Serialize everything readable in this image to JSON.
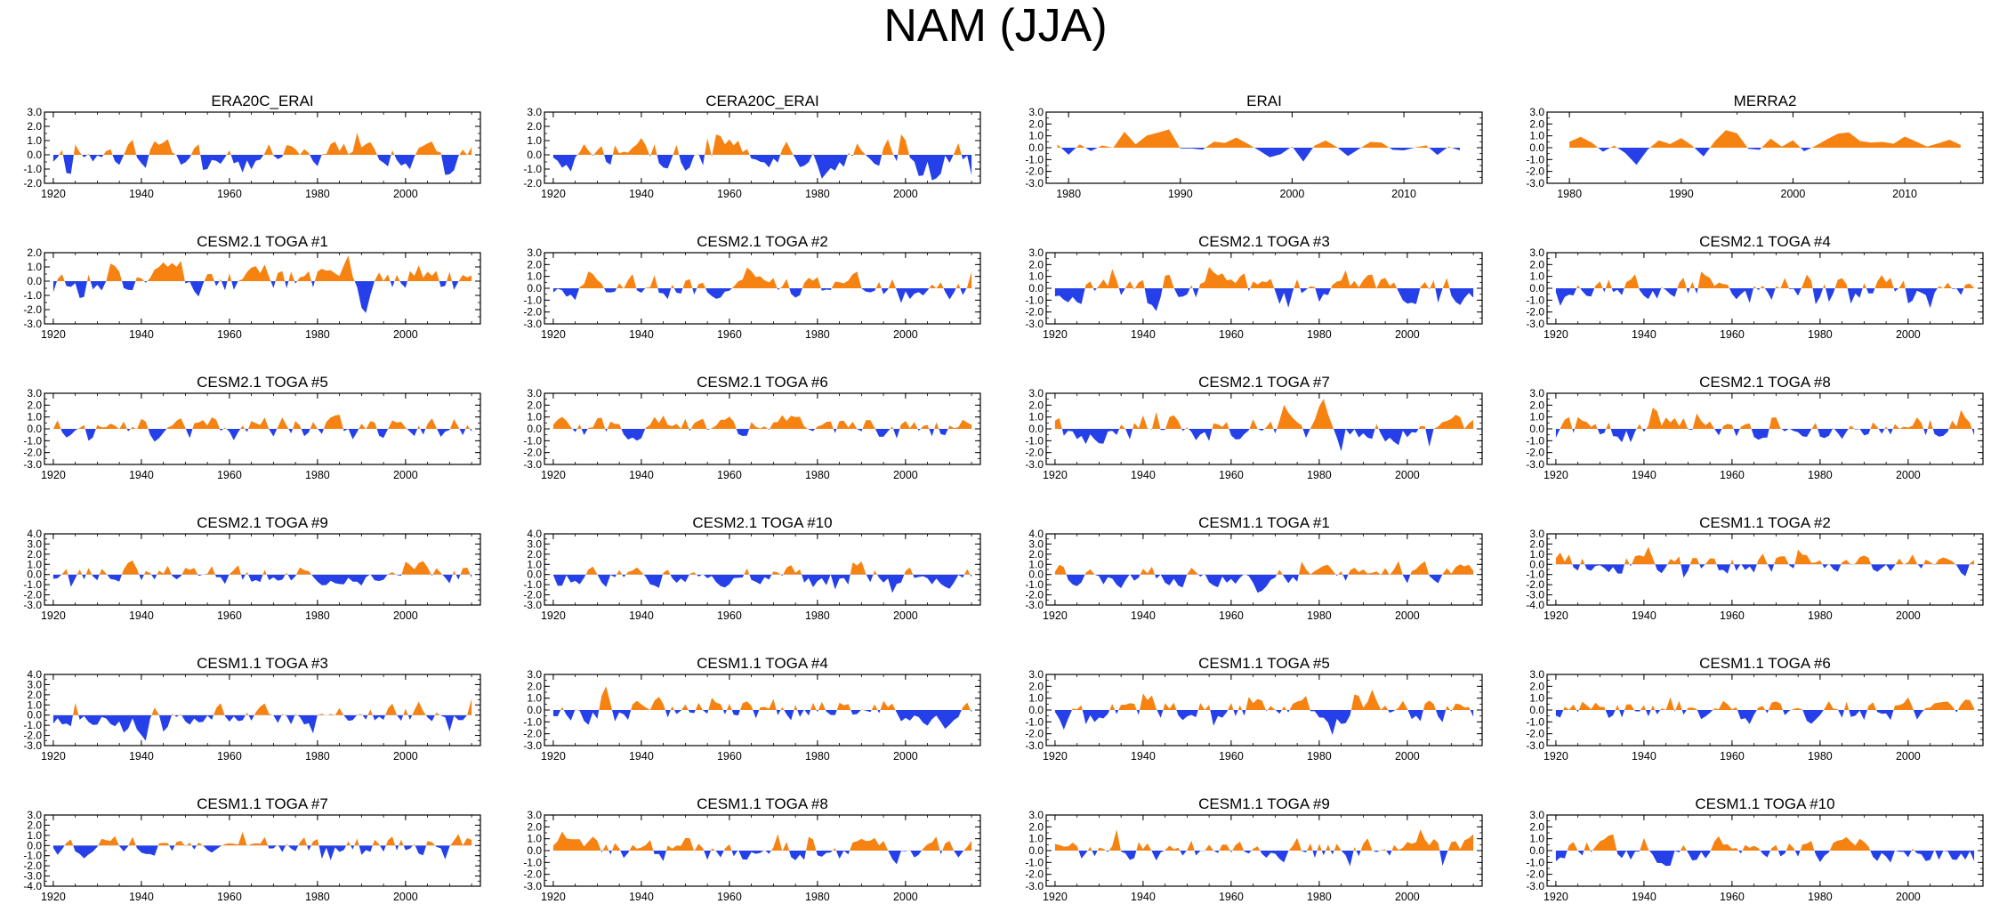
{
  "figure_title": "NAM (JJA)",
  "colors": {
    "positive": "#f68212",
    "negative": "#2540e8",
    "axis": "#000000"
  },
  "chart_data": [
    {
      "type": "area",
      "title": "ERA20C_ERAI",
      "x_start": 1920,
      "x_end": 2015,
      "xlim": [
        1918,
        2017
      ],
      "xticks": [
        1920,
        1940,
        1960,
        1980,
        2000
      ],
      "ylim": [
        -2.0,
        3.0
      ],
      "yticks": [
        3.0,
        2.0,
        1.0,
        0.0,
        -1.0,
        -2.0
      ],
      "seed": 11,
      "amp": 0.9
    },
    {
      "type": "area",
      "title": "CERA20C_ERAI",
      "x_start": 1920,
      "x_end": 2015,
      "xlim": [
        1918,
        2017
      ],
      "xticks": [
        1920,
        1940,
        1960,
        1980,
        2000
      ],
      "ylim": [
        -2.0,
        3.0
      ],
      "yticks": [
        3.0,
        2.0,
        1.0,
        0.0,
        -1.0,
        -2.0
      ],
      "seed": 12,
      "amp": 1.0
    },
    {
      "type": "area",
      "title": "ERAI",
      "x_start": 1979,
      "x_end": 2015,
      "xlim": [
        1978,
        2017
      ],
      "xticks": [
        1980,
        1990,
        2000,
        2010
      ],
      "ylim": [
        -3.0,
        3.0
      ],
      "yticks": [
        3.0,
        2.0,
        1.0,
        0.0,
        -1.0,
        -2.0,
        -3.0
      ],
      "seed": 13,
      "amp": 1.0
    },
    {
      "type": "area",
      "title": "MERRA2",
      "x_start": 1980,
      "x_end": 2015,
      "xlim": [
        1978,
        2017
      ],
      "xticks": [
        1980,
        1990,
        2000,
        2010
      ],
      "ylim": [
        -3.0,
        3.0
      ],
      "yticks": [
        3.0,
        2.0,
        1.0,
        0.0,
        -1.0,
        -2.0,
        -3.0
      ],
      "seed": 14,
      "amp": 1.0
    },
    {
      "type": "area",
      "title": "CESM2.1 TOGA #1",
      "x_start": 1920,
      "x_end": 2015,
      "xlim": [
        1918,
        2017
      ],
      "xticks": [
        1920,
        1940,
        1960,
        1980,
        2000
      ],
      "ylim": [
        -3.0,
        2.0
      ],
      "yticks": [
        2.0,
        1.0,
        0.0,
        -1.0,
        -2.0,
        -3.0
      ],
      "seed": 21,
      "amp": 1.1
    },
    {
      "type": "area",
      "title": "CESM2.1 TOGA #2",
      "x_start": 1920,
      "x_end": 2015,
      "xlim": [
        1918,
        2017
      ],
      "xticks": [
        1920,
        1940,
        1960,
        1980,
        2000
      ],
      "ylim": [
        -3.0,
        3.0
      ],
      "yticks": [
        3.0,
        2.0,
        1.0,
        0.0,
        -1.0,
        -2.0,
        -3.0
      ],
      "seed": 22,
      "amp": 1.0
    },
    {
      "type": "area",
      "title": "CESM2.1 TOGA #3",
      "x_start": 1920,
      "x_end": 2015,
      "xlim": [
        1918,
        2017
      ],
      "xticks": [
        1920,
        1940,
        1960,
        1980,
        2000
      ],
      "ylim": [
        -3.0,
        3.0
      ],
      "yticks": [
        3.0,
        2.0,
        1.0,
        0.0,
        -1.0,
        -2.0,
        -3.0
      ],
      "seed": 23,
      "amp": 1.0
    },
    {
      "type": "area",
      "title": "CESM2.1 TOGA #4",
      "x_start": 1920,
      "x_end": 2015,
      "xlim": [
        1918,
        2017
      ],
      "xticks": [
        1920,
        1940,
        1960,
        1980,
        2000
      ],
      "ylim": [
        -3.0,
        3.0
      ],
      "yticks": [
        3.0,
        2.0,
        1.0,
        0.0,
        -1.0,
        -2.0,
        -3.0
      ],
      "seed": 24,
      "amp": 1.0
    },
    {
      "type": "area",
      "title": "CESM2.1 TOGA #5",
      "x_start": 1920,
      "x_end": 2015,
      "xlim": [
        1918,
        2017
      ],
      "xticks": [
        1920,
        1940,
        1960,
        1980,
        2000
      ],
      "ylim": [
        -3.0,
        3.0
      ],
      "yticks": [
        3.0,
        2.0,
        1.0,
        0.0,
        -1.0,
        -2.0,
        -3.0
      ],
      "seed": 25,
      "amp": 1.0
    },
    {
      "type": "area",
      "title": "CESM2.1 TOGA #6",
      "x_start": 1920,
      "x_end": 2015,
      "xlim": [
        1918,
        2017
      ],
      "xticks": [
        1920,
        1940,
        1960,
        1980,
        2000
      ],
      "ylim": [
        -3.0,
        3.0
      ],
      "yticks": [
        3.0,
        2.0,
        1.0,
        0.0,
        -1.0,
        -2.0,
        -3.0
      ],
      "seed": 26,
      "amp": 1.0
    },
    {
      "type": "area",
      "title": "CESM2.1 TOGA #7",
      "x_start": 1920,
      "x_end": 2015,
      "xlim": [
        1918,
        2017
      ],
      "xticks": [
        1920,
        1940,
        1960,
        1980,
        2000
      ],
      "ylim": [
        -3.0,
        3.0
      ],
      "yticks": [
        3.0,
        2.0,
        1.0,
        0.0,
        -1.0,
        -2.0,
        -3.0
      ],
      "seed": 27,
      "amp": 1.0
    },
    {
      "type": "area",
      "title": "CESM2.1 TOGA #8",
      "x_start": 1920,
      "x_end": 2015,
      "xlim": [
        1918,
        2017
      ],
      "xticks": [
        1920,
        1940,
        1960,
        1980,
        2000
      ],
      "ylim": [
        -3.0,
        3.0
      ],
      "yticks": [
        3.0,
        2.0,
        1.0,
        0.0,
        -1.0,
        -2.0,
        -3.0
      ],
      "seed": 28,
      "amp": 1.0
    },
    {
      "type": "area",
      "title": "CESM2.1 TOGA #9",
      "x_start": 1920,
      "x_end": 2015,
      "xlim": [
        1918,
        2017
      ],
      "xticks": [
        1920,
        1940,
        1960,
        1980,
        2000
      ],
      "ylim": [
        -3.0,
        4.0
      ],
      "yticks": [
        4.0,
        3.0,
        2.0,
        1.0,
        0.0,
        -1.0,
        -2.0,
        -3.0
      ],
      "seed": 29,
      "amp": 1.0
    },
    {
      "type": "area",
      "title": "CESM2.1 TOGA #10",
      "x_start": 1920,
      "x_end": 2015,
      "xlim": [
        1918,
        2017
      ],
      "xticks": [
        1920,
        1940,
        1960,
        1980,
        2000
      ],
      "ylim": [
        -3.0,
        4.0
      ],
      "yticks": [
        4.0,
        3.0,
        2.0,
        1.0,
        0.0,
        -1.0,
        -2.0,
        -3.0
      ],
      "seed": 30,
      "amp": 1.0
    },
    {
      "type": "area",
      "title": "CESM1.1 TOGA #1",
      "x_start": 1920,
      "x_end": 2015,
      "xlim": [
        1918,
        2017
      ],
      "xticks": [
        1920,
        1940,
        1960,
        1980,
        2000
      ],
      "ylim": [
        -3.0,
        4.0
      ],
      "yticks": [
        4.0,
        3.0,
        2.0,
        1.0,
        0.0,
        -1.0,
        -2.0,
        -3.0
      ],
      "seed": 31,
      "amp": 1.0
    },
    {
      "type": "area",
      "title": "CESM1.1 TOGA #2",
      "x_start": 1920,
      "x_end": 2015,
      "xlim": [
        1918,
        2017
      ],
      "xticks": [
        1920,
        1940,
        1960,
        1980,
        2000
      ],
      "ylim": [
        -4.0,
        3.0
      ],
      "yticks": [
        3.0,
        2.0,
        1.0,
        0.0,
        -1.0,
        -2.0,
        -3.0,
        -4.0
      ],
      "seed": 32,
      "amp": 1.0
    },
    {
      "type": "area",
      "title": "CESM1.1 TOGA #3",
      "x_start": 1920,
      "x_end": 2015,
      "xlim": [
        1918,
        2017
      ],
      "xticks": [
        1920,
        1940,
        1960,
        1980,
        2000
      ],
      "ylim": [
        -3.0,
        4.0
      ],
      "yticks": [
        4.0,
        3.0,
        2.0,
        1.0,
        0.0,
        -1.0,
        -2.0,
        -3.0
      ],
      "seed": 33,
      "amp": 1.0
    },
    {
      "type": "area",
      "title": "CESM1.1 TOGA #4",
      "x_start": 1920,
      "x_end": 2015,
      "xlim": [
        1918,
        2017
      ],
      "xticks": [
        1920,
        1940,
        1960,
        1980,
        2000
      ],
      "ylim": [
        -3.0,
        3.0
      ],
      "yticks": [
        3.0,
        2.0,
        1.0,
        0.0,
        -1.0,
        -2.0,
        -3.0
      ],
      "seed": 34,
      "amp": 1.0
    },
    {
      "type": "area",
      "title": "CESM1.1 TOGA #5",
      "x_start": 1920,
      "x_end": 2015,
      "xlim": [
        1918,
        2017
      ],
      "xticks": [
        1920,
        1940,
        1960,
        1980,
        2000
      ],
      "ylim": [
        -3.0,
        3.0
      ],
      "yticks": [
        3.0,
        2.0,
        1.0,
        0.0,
        -1.0,
        -2.0,
        -3.0
      ],
      "seed": 35,
      "amp": 1.0
    },
    {
      "type": "area",
      "title": "CESM1.1 TOGA #6",
      "x_start": 1920,
      "x_end": 2015,
      "xlim": [
        1918,
        2017
      ],
      "xticks": [
        1920,
        1940,
        1960,
        1980,
        2000
      ],
      "ylim": [
        -3.0,
        3.0
      ],
      "yticks": [
        3.0,
        2.0,
        1.0,
        0.0,
        -1.0,
        -2.0,
        -3.0
      ],
      "seed": 36,
      "amp": 1.0
    },
    {
      "type": "area",
      "title": "CESM1.1 TOGA #7",
      "x_start": 1920,
      "x_end": 2015,
      "xlim": [
        1918,
        2017
      ],
      "xticks": [
        1920,
        1940,
        1960,
        1980,
        2000
      ],
      "ylim": [
        -4.0,
        3.0
      ],
      "yticks": [
        3.0,
        2.0,
        1.0,
        0.0,
        -1.0,
        -2.0,
        -3.0,
        -4.0
      ],
      "seed": 37,
      "amp": 1.0
    },
    {
      "type": "area",
      "title": "CESM1.1 TOGA #8",
      "x_start": 1920,
      "x_end": 2015,
      "xlim": [
        1918,
        2017
      ],
      "xticks": [
        1920,
        1940,
        1960,
        1980,
        2000
      ],
      "ylim": [
        -3.0,
        3.0
      ],
      "yticks": [
        3.0,
        2.0,
        1.0,
        0.0,
        -1.0,
        -2.0,
        -3.0
      ],
      "seed": 38,
      "amp": 1.0
    },
    {
      "type": "area",
      "title": "CESM1.1 TOGA #9",
      "x_start": 1920,
      "x_end": 2015,
      "xlim": [
        1918,
        2017
      ],
      "xticks": [
        1920,
        1940,
        1960,
        1980,
        2000
      ],
      "ylim": [
        -3.0,
        3.0
      ],
      "yticks": [
        3.0,
        2.0,
        1.0,
        0.0,
        -1.0,
        -2.0,
        -3.0
      ],
      "seed": 39,
      "amp": 1.0
    },
    {
      "type": "area",
      "title": "CESM1.1 TOGA #10",
      "x_start": 1920,
      "x_end": 2015,
      "xlim": [
        1918,
        2017
      ],
      "xticks": [
        1920,
        1940,
        1960,
        1980,
        2000
      ],
      "ylim": [
        -3.0,
        3.0
      ],
      "yticks": [
        3.0,
        2.0,
        1.0,
        0.0,
        -1.0,
        -2.0,
        -3.0
      ],
      "seed": 40,
      "amp": 1.0
    }
  ]
}
